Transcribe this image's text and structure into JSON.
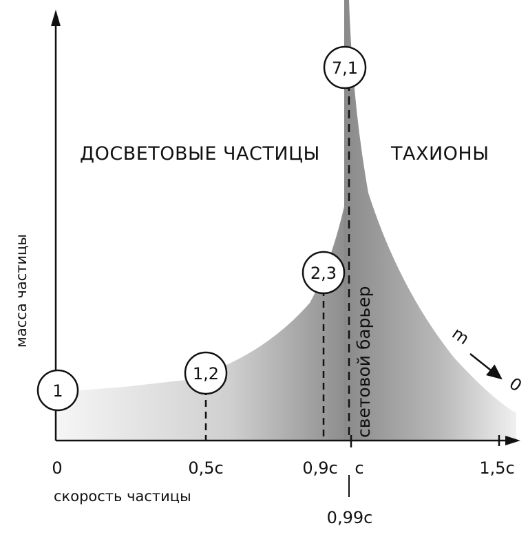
{
  "regions": {
    "subluminal": "ДОСВЕТОВЫЕ ЧАСТИЦЫ",
    "tachyons": "ТАХИОНЫ"
  },
  "axes": {
    "x_title": "скорость частицы",
    "y_title": "масса частицы"
  },
  "ticks": {
    "zero": "0",
    "half_c": "0,5с",
    "c_09": "0,9с",
    "c": "с",
    "c_15": "1,5с",
    "c_099": "0,99с"
  },
  "markers": {
    "m1": "1",
    "m2": "1,2",
    "m3": "2,3",
    "m4": "7,1"
  },
  "barrier_label": "световой барьер",
  "tachyon_limit": {
    "m": "m",
    "zero": "0"
  },
  "colors": {
    "ink": "#111111",
    "fill_dark": "#8a8a8a",
    "fill_light": "#f4f4f4",
    "background": "#ffffff"
  }
}
